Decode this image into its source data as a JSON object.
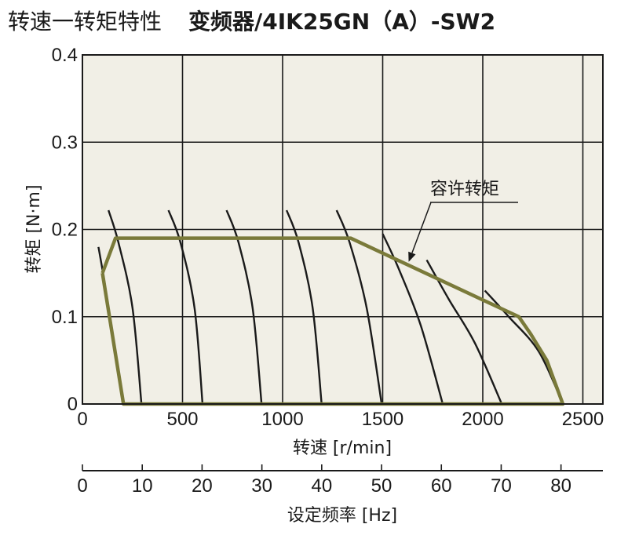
{
  "header": {
    "title_main": "转速一转矩特性",
    "title_model": "变频器/4IK25GN（A）-SW2"
  },
  "chart_data": {
    "type": "line",
    "title": "转速一转矩特性　变频器/4IK25GN（A）-SW2",
    "xlabel": "转速 [r/min]",
    "ylabel": "转矩 [N·m]",
    "x2label": "设定频率 [Hz]",
    "xlim": [
      0,
      2600
    ],
    "ylim": [
      0,
      0.4
    ],
    "xticks": [
      "0",
      "500",
      "1000",
      "1500",
      "2000",
      "2500"
    ],
    "xtick_values": [
      0,
      500,
      1000,
      1500,
      2000,
      2500
    ],
    "yticks": [
      "0",
      "0.1",
      "0.2",
      "0.3",
      "0.4"
    ],
    "ytick_values": [
      0,
      0.1,
      0.2,
      0.3,
      0.4
    ],
    "x2lim": [
      0,
      87
    ],
    "x2ticks": [
      "0",
      "10",
      "20",
      "30",
      "40",
      "50",
      "60",
      "70",
      "80"
    ],
    "x2tick_values": [
      0,
      10,
      20,
      30,
      40,
      50,
      60,
      70,
      80
    ],
    "grid": true,
    "colors": {
      "permissible": "#7a7a3a",
      "curves": "#1a1a1a",
      "plot_bg": "#f1efe6"
    },
    "annotation": {
      "text": "容许转矩",
      "points_to": {
        "x": 1630,
        "y": 0.163
      }
    },
    "permissible_torque": {
      "name": "容许转矩",
      "points": [
        {
          "x": 100,
          "y": 0.15
        },
        {
          "x": 165,
          "y": 0.19
        },
        {
          "x": 1340,
          "y": 0.19
        },
        {
          "x": 2180,
          "y": 0.1
        },
        {
          "x": 2240,
          "y": 0.08
        },
        {
          "x": 2320,
          "y": 0.05
        },
        {
          "x": 2400,
          "y": 0
        },
        {
          "x": 205,
          "y": 0
        },
        {
          "x": 100,
          "y": 0.15
        }
      ]
    },
    "speed_torque_curves": [
      {
        "points": [
          {
            "x": 80,
            "y": 0.18
          },
          {
            "x": 110,
            "y": 0.14
          },
          {
            "x": 150,
            "y": 0.08
          },
          {
            "x": 205,
            "y": 0
          }
        ]
      },
      {
        "points": [
          {
            "x": 130,
            "y": 0.222
          },
          {
            "x": 180,
            "y": 0.185
          },
          {
            "x": 250,
            "y": 0.11
          },
          {
            "x": 295,
            "y": 0
          }
        ]
      },
      {
        "points": [
          {
            "x": 430,
            "y": 0.222
          },
          {
            "x": 490,
            "y": 0.185
          },
          {
            "x": 560,
            "y": 0.11
          },
          {
            "x": 600,
            "y": 0
          }
        ]
      },
      {
        "points": [
          {
            "x": 720,
            "y": 0.222
          },
          {
            "x": 780,
            "y": 0.185
          },
          {
            "x": 850,
            "y": 0.11
          },
          {
            "x": 895,
            "y": 0
          }
        ]
      },
      {
        "points": [
          {
            "x": 1020,
            "y": 0.222
          },
          {
            "x": 1080,
            "y": 0.185
          },
          {
            "x": 1150,
            "y": 0.11
          },
          {
            "x": 1195,
            "y": 0
          }
        ]
      },
      {
        "points": [
          {
            "x": 1270,
            "y": 0.222
          },
          {
            "x": 1335,
            "y": 0.185
          },
          {
            "x": 1420,
            "y": 0.11
          },
          {
            "x": 1495,
            "y": 0
          }
        ]
      },
      {
        "points": [
          {
            "x": 1500,
            "y": 0.195
          },
          {
            "x": 1580,
            "y": 0.155
          },
          {
            "x": 1690,
            "y": 0.09
          },
          {
            "x": 1800,
            "y": 0
          }
        ]
      },
      {
        "points": [
          {
            "x": 1720,
            "y": 0.165
          },
          {
            "x": 1830,
            "y": 0.12
          },
          {
            "x": 1960,
            "y": 0.07
          },
          {
            "x": 2095,
            "y": 0
          }
        ]
      },
      {
        "points": [
          {
            "x": 2010,
            "y": 0.13
          },
          {
            "x": 2130,
            "y": 0.1
          },
          {
            "x": 2280,
            "y": 0.06
          },
          {
            "x": 2400,
            "y": 0
          }
        ]
      }
    ]
  }
}
